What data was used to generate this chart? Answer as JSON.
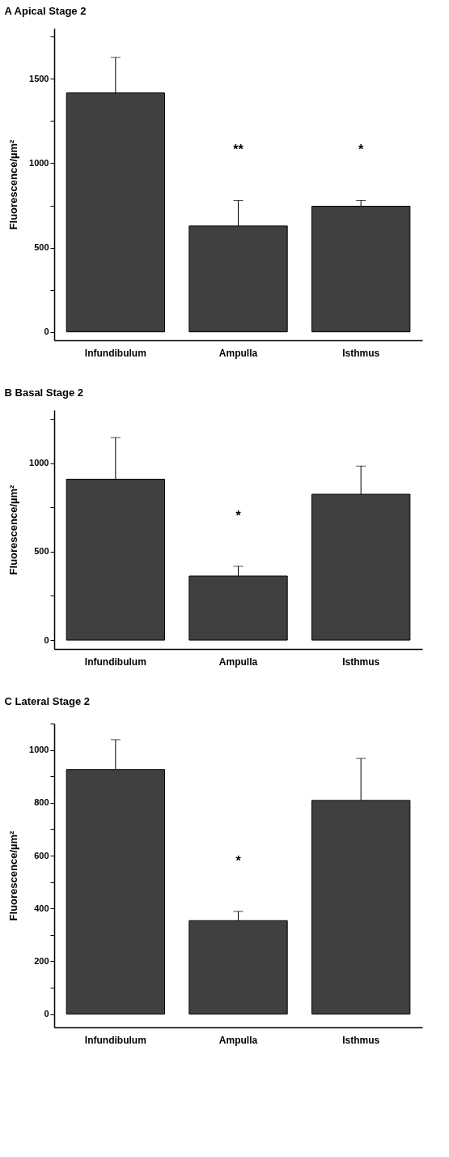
{
  "chart_data": [
    {
      "type": "bar",
      "title": "A   Apical Stage 2",
      "ylabel": "Fluorescence/µm²",
      "categories": [
        "Infundibulum",
        "Ampulla",
        "Isthmus"
      ],
      "series": [
        {
          "color": "#404040",
          "values": [
            1417,
            628,
            745
          ],
          "errors": [
            [
              1417,
              1628
            ],
            [
              628,
              779
            ],
            [
              745,
              779
            ]
          ]
        }
      ],
      "ylim": [
        -50,
        1800
      ],
      "yticks": [
        0,
        {
          "value": 250,
          "label": null
        },
        500,
        {
          "value": 750,
          "label": null
        },
        1000,
        {
          "value": 1250,
          "label": null
        },
        1500,
        {
          "value": 1750,
          "label": null
        }
      ],
      "annotations": [
        "**",
        "*"
      ],
      "grid": false
    },
    {
      "type": "bar",
      "title": "B   Basal Stage 2",
      "ylabel": "Fluorescence/µm²",
      "categories": [
        "Infundibulum",
        "Ampulla",
        "Isthmus"
      ],
      "series": [
        {
          "color": "#404040",
          "values": [
            909,
            362,
            824
          ],
          "errors": [
            [
              909,
              1144
            ],
            [
              362,
              417
            ],
            [
              824,
              983
            ]
          ]
        }
      ],
      "ylim": [
        -50,
        1300
      ],
      "yticks": [
        0,
        {
          "value": 250,
          "label": null
        },
        500,
        {
          "value": 750,
          "label": null
        },
        1000,
        {
          "value": 1250,
          "label": null
        }
      ],
      "annotations": [
        "*"
      ],
      "grid": false
    },
    {
      "type": "bar",
      "title": "C   Lateral Stage 2",
      "ylabel": "Fluorescence/µm²",
      "categories": [
        "Infundibulum",
        "Ampulla",
        "Isthmus"
      ],
      "series": [
        {
          "color": "#404040",
          "values": [
            926,
            354,
            809
          ],
          "errors": [
            [
              926,
              1039
            ],
            [
              354,
              389
            ],
            [
              809,
              968
            ]
          ]
        }
      ],
      "ylim": [
        -50,
        1100
      ],
      "yticks": [
        0,
        {
          "value": 100,
          "label": null
        },
        200,
        {
          "value": 300,
          "label": null
        },
        400,
        {
          "value": 500,
          "label": null
        },
        600,
        {
          "value": 700,
          "label": null
        },
        800,
        {
          "value": 900,
          "label": null
        },
        1000,
        {
          "value": 1100,
          "label": null
        }
      ],
      "annotations": [
        "*"
      ],
      "grid": false
    }
  ]
}
